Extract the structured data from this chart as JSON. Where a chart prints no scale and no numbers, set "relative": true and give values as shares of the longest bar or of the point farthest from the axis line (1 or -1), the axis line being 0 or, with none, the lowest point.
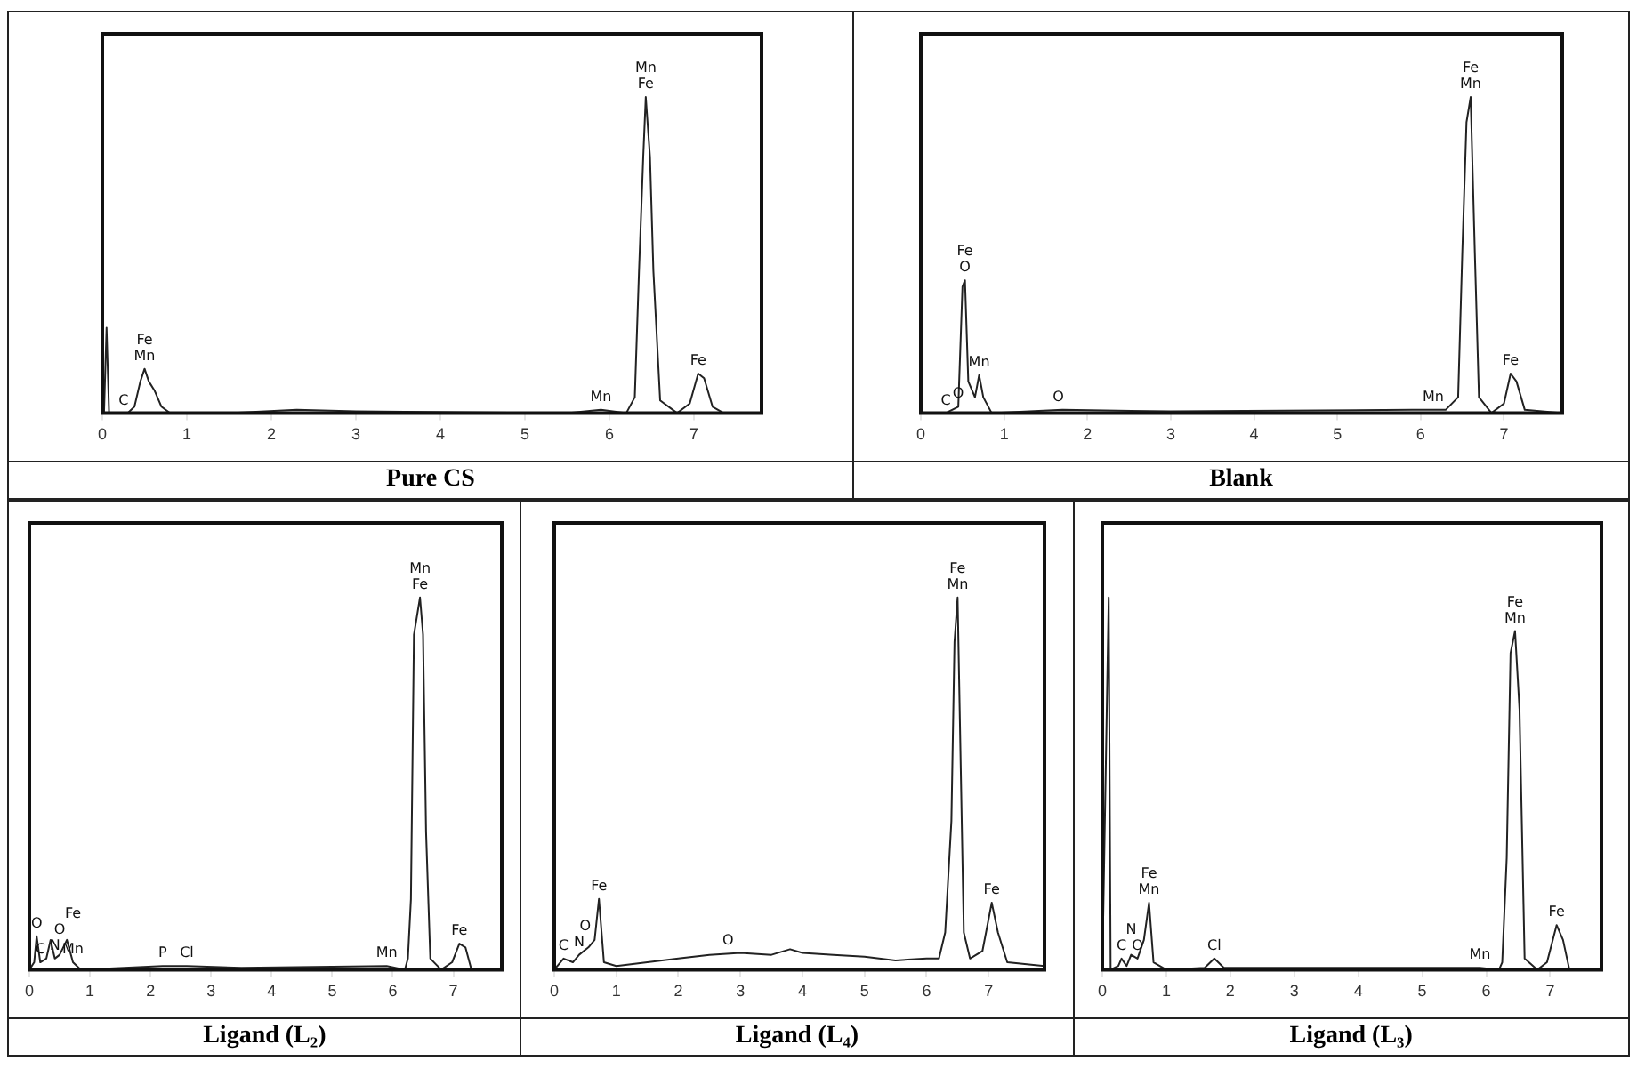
{
  "chart_data": [
    {
      "type": "line",
      "title": "Pure CS",
      "relative": true,
      "xlim": [
        0,
        7.8
      ],
      "xticks": [
        0,
        1,
        2,
        3,
        4,
        5,
        6,
        7
      ],
      "series": [
        {
          "color": "#222222",
          "x": [
            0.02,
            0.05,
            0.08,
            0.3,
            0.38,
            0.45,
            0.5,
            0.55,
            0.62,
            0.7,
            0.8,
            1.5,
            2.3,
            3,
            5.5,
            5.9,
            6.2,
            6.3,
            6.35,
            6.4,
            6.43,
            6.48,
            6.52,
            6.6,
            6.8,
            6.95,
            7.05,
            7.12,
            7.22,
            7.35,
            7.8
          ],
          "values": [
            0,
            0.27,
            0,
            0,
            0.02,
            0.1,
            0.14,
            0.1,
            0.07,
            0.02,
            0,
            0,
            0.01,
            0.005,
            0,
            0.01,
            0,
            0.05,
            0.45,
            0.81,
            1,
            0.81,
            0.45,
            0.04,
            0,
            0.03,
            0.125,
            0.11,
            0.02,
            0,
            0
          ]
        }
      ],
      "annotations": [
        {
          "text": "C",
          "x": 0.25,
          "y": 0
        },
        {
          "text": "Mn",
          "x": 0.5,
          "y": 0.14
        },
        {
          "text": "Fe",
          "x": 0.5,
          "y": 0.14
        },
        {
          "text": "Mn",
          "x": 5.9,
          "y": 0.01
        },
        {
          "text": "Fe",
          "x": 6.43,
          "y": 1
        },
        {
          "text": "Mn",
          "x": 6.43,
          "y": 1
        },
        {
          "text": "Fe",
          "x": 7.05,
          "y": 0.125
        }
      ]
    },
    {
      "type": "line",
      "title": "Blank",
      "relative": true,
      "xlim": [
        0,
        7.7
      ],
      "xticks": [
        0,
        1,
        2,
        3,
        4,
        5,
        6,
        7
      ],
      "series": [
        {
          "color": "#222222",
          "x": [
            0,
            0.3,
            0.45,
            0.5,
            0.53,
            0.57,
            0.65,
            0.7,
            0.75,
            0.85,
            1.7,
            3,
            5.9,
            6.3,
            6.45,
            6.5,
            6.55,
            6.6,
            6.65,
            6.7,
            6.85,
            7,
            7.08,
            7.15,
            7.25,
            7.7
          ],
          "values": [
            0,
            0,
            0.02,
            0.4,
            0.42,
            0.1,
            0.05,
            0.12,
            0.05,
            0,
            0.01,
            0.005,
            0.01,
            0.01,
            0.05,
            0.51,
            0.92,
            1,
            0.51,
            0.05,
            0,
            0.03,
            0.125,
            0.1,
            0.01,
            0
          ]
        }
      ],
      "annotations": [
        {
          "text": "C",
          "x": 0.3,
          "y": 0
        },
        {
          "text": "O",
          "x": 0.45,
          "y": 0.02
        },
        {
          "text": "O",
          "x": 0.53,
          "y": 0.42
        },
        {
          "text": "Fe",
          "x": 0.53,
          "y": 0.42
        },
        {
          "text": "Mn",
          "x": 0.7,
          "y": 0.12
        },
        {
          "text": "O",
          "x": 1.65,
          "y": 0.01
        },
        {
          "text": "Mn",
          "x": 6.15,
          "y": 0.01
        },
        {
          "text": "Mn",
          "x": 6.6,
          "y": 1
        },
        {
          "text": "Fe",
          "x": 6.6,
          "y": 1
        },
        {
          "text": "Fe",
          "x": 7.08,
          "y": 0.125
        }
      ]
    },
    {
      "type": "line",
      "title": "Ligand (L₂)",
      "relative": true,
      "xlim": [
        0,
        7.8
      ],
      "xticks": [
        0,
        1,
        2,
        3,
        4,
        5,
        6,
        7
      ],
      "series": [
        {
          "color": "#222222",
          "x": [
            0,
            0.08,
            0.12,
            0.18,
            0.28,
            0.35,
            0.42,
            0.5,
            0.62,
            0.72,
            0.85,
            2.2,
            2.6,
            3.5,
            5.9,
            6.2,
            6.25,
            6.3,
            6.35,
            6.45,
            6.5,
            6.55,
            6.62,
            6.8,
            6.98,
            7.1,
            7.2,
            7.3,
            7.8
          ],
          "values": [
            0,
            0.02,
            0.09,
            0.02,
            0.03,
            0.08,
            0.03,
            0.04,
            0.08,
            0.02,
            0,
            0.01,
            0.01,
            0.005,
            0.01,
            0,
            0.03,
            0.19,
            0.9,
            1,
            0.9,
            0.37,
            0.03,
            0,
            0.02,
            0.07,
            0.06,
            0,
            0
          ]
        }
      ],
      "annotations": [
        {
          "text": "O",
          "x": 0.12,
          "y": 0.09
        },
        {
          "text": "C",
          "x": 0.18,
          "y": 0.02
        },
        {
          "text": "N",
          "x": 0.42,
          "y": 0.03
        },
        {
          "text": "O",
          "x": 0.5,
          "y": 0.04
        },
        {
          "text": "Mn",
          "x": 0.72,
          "y": 0.02
        },
        {
          "text": "Fe",
          "x": 0.72,
          "y": 0.02
        },
        {
          "text": "P",
          "x": 2.2,
          "y": 0.01
        },
        {
          "text": "Cl",
          "x": 2.6,
          "y": 0.01
        },
        {
          "text": "Mn",
          "x": 5.9,
          "y": 0.01
        },
        {
          "text": "Fe",
          "x": 6.45,
          "y": 1
        },
        {
          "text": "Mn",
          "x": 6.45,
          "y": 1
        },
        {
          "text": "Fe",
          "x": 7.1,
          "y": 0.07
        }
      ]
    },
    {
      "type": "line",
      "title": "Ligand (L₄)",
      "relative": true,
      "xlim": [
        0,
        7.9
      ],
      "xticks": [
        0,
        1,
        2,
        3,
        4,
        5,
        6,
        7
      ],
      "series": [
        {
          "color": "#222222",
          "x": [
            0,
            0.15,
            0.3,
            0.4,
            0.55,
            0.65,
            0.72,
            0.8,
            1,
            1.5,
            2,
            2.5,
            3,
            3.5,
            3.8,
            4,
            4.5,
            5,
            5.5,
            6,
            6.2,
            6.3,
            6.4,
            6.45,
            6.5,
            6.55,
            6.6,
            6.7,
            6.9,
            7.05,
            7.15,
            7.3,
            7.9
          ],
          "values": [
            0,
            0.03,
            0.02,
            0.04,
            0.06,
            0.08,
            0.19,
            0.02,
            0.01,
            0.02,
            0.03,
            0.04,
            0.045,
            0.04,
            0.055,
            0.045,
            0.04,
            0.035,
            0.025,
            0.03,
            0.03,
            0.1,
            0.4,
            0.88,
            1,
            0.55,
            0.1,
            0.03,
            0.05,
            0.18,
            0.1,
            0.02,
            0.01
          ]
        }
      ],
      "annotations": [
        {
          "text": "C",
          "x": 0.15,
          "y": 0.03
        },
        {
          "text": "N",
          "x": 0.4,
          "y": 0.04
        },
        {
          "text": "O",
          "x": 0.5,
          "y": 0.08
        },
        {
          "text": "Fe",
          "x": 0.72,
          "y": 0.19
        },
        {
          "text": "O",
          "x": 2.8,
          "y": 0.045
        },
        {
          "text": "Mn",
          "x": 6.5,
          "y": 1
        },
        {
          "text": "Fe",
          "x": 6.5,
          "y": 1
        },
        {
          "text": "Fe",
          "x": 7.05,
          "y": 0.18
        }
      ]
    },
    {
      "type": "line",
      "title": "Ligand (L₃)",
      "relative": true,
      "xlim": [
        0,
        7.8
      ],
      "xticks": [
        0,
        1,
        2,
        3,
        4,
        5,
        6,
        7
      ],
      "series": [
        {
          "color": "#222222",
          "x": [
            0,
            0.1,
            0.13,
            0.25,
            0.3,
            0.38,
            0.45,
            0.55,
            0.65,
            0.73,
            0.8,
            1,
            1.6,
            1.75,
            1.9,
            3,
            5.9,
            6.2,
            6.25,
            6.32,
            6.38,
            6.45,
            6.52,
            6.6,
            6.8,
            6.95,
            7.1,
            7.2,
            7.3,
            7.8
          ],
          "values": [
            0,
            1,
            0,
            0.01,
            0.03,
            0.01,
            0.04,
            0.03,
            0.08,
            0.18,
            0.02,
            0,
            0.005,
            0.03,
            0.005,
            0.005,
            0.005,
            0,
            0.02,
            0.3,
            0.85,
            0.91,
            0.7,
            0.03,
            0,
            0.02,
            0.12,
            0.08,
            0,
            0
          ]
        }
      ],
      "annotations": [
        {
          "text": "C",
          "x": 0.3,
          "y": 0.03
        },
        {
          "text": "N",
          "x": 0.45,
          "y": 0.04
        },
        {
          "text": "O",
          "x": 0.55,
          "y": 0.03
        },
        {
          "text": "Mn",
          "x": 0.73,
          "y": 0.18
        },
        {
          "text": "Fe",
          "x": 0.73,
          "y": 0.18
        },
        {
          "text": "Cl",
          "x": 1.75,
          "y": 0.03
        },
        {
          "text": "Mn",
          "x": 5.9,
          "y": 0.005
        },
        {
          "text": "Mn",
          "x": 6.45,
          "y": 0.91
        },
        {
          "text": "Fe",
          "x": 6.45,
          "y": 0.91
        },
        {
          "text": "Fe",
          "x": 7.1,
          "y": 0.12
        }
      ]
    }
  ]
}
